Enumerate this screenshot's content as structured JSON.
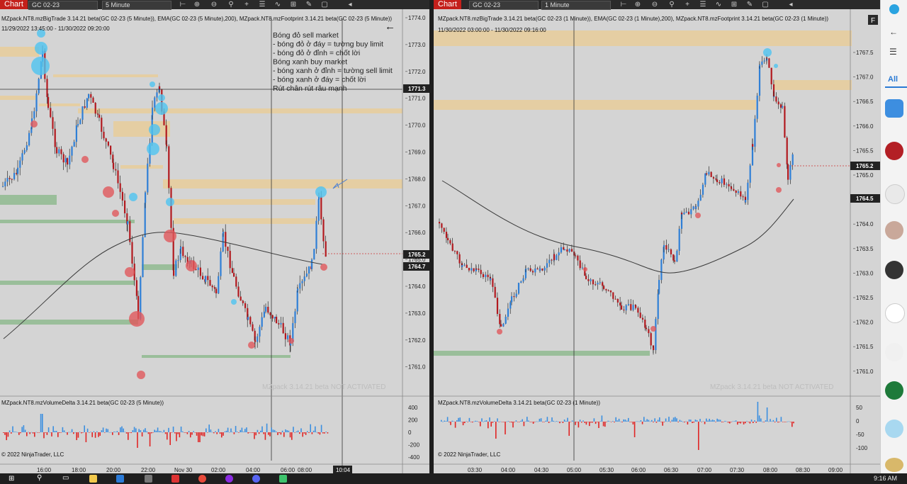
{
  "left": {
    "tab_label": "Chart",
    "instrument": "GC 02-23",
    "timeframe": "5 Minute",
    "indicator_title": "MZpack.NT8.mzBigTrade 3.14.21 beta(GC 02-23 (5 Minute)), EMA(GC 02-23 (5 Minute),200), MZpack.NT8.mzFootprint 3.14.21 beta(GC 02-23 (5 Minute))",
    "date_range": "11/29/2022 13:45:00 - 11/30/2022 09:20:00",
    "notes": [
      "Bóng đỏ sell market",
      "- bóng đỏ ở đáy = tường buy limit",
      "- bóng đỏ ở đỉnh = chốt lời",
      "Bóng xanh buy market",
      "- bóng xanh ở đỉnh = tường sell limit",
      "- bóng xanh ở đáy = chốt lời",
      "Rút chân rút râu mạnh"
    ],
    "watermark": "MZpack 3.14.21 beta NOT ACTIVATED",
    "y_ticks": [
      "1774.0",
      "1773.0",
      "1772.0",
      "1771.0",
      "1770.0",
      "1769.0",
      "1768.0",
      "1767.0",
      "1766.0",
      "1765.0",
      "1764.0",
      "1763.0",
      "1762.0",
      "1761.0"
    ],
    "cursor_price": "1771.3",
    "last_price": "1765.2",
    "ema_price": "1764.7",
    "volume_title": "MZpack.NT8.mzVolumeDelta 3.14.21 beta(GC 02-23 (5 Minute))",
    "volume_ticks": [
      "400",
      "200",
      "0",
      "-200",
      "-400"
    ],
    "copyright": "© 2022 NinjaTrader, LLC",
    "x_ticks": [
      "16:00",
      "18:00",
      "20:00",
      "22:00",
      "Nov 30",
      "02:00",
      "04:00",
      "06:00",
      "08:00"
    ],
    "cursor_time": "10:04"
  },
  "right": {
    "tab_label": "Chart",
    "instrument": "GC 02-23",
    "timeframe": "1 Minute",
    "indicator_title": "MZpack.NT8.mzBigTrade 3.14.21 beta(GC 02-23 (1 Minute)), EMA(GC 02-23 (1 Minute),200), MZpack.NT8.mzFootprint 3.14.21 beta(GC 02-23 (1 Minute))",
    "date_range": "11/30/2022 03:00:00 - 11/30/2022 09:16:00",
    "watermark": "MZpack 3.14.21 beta NOT ACTIVATED",
    "y_ticks": [
      "1767.5",
      "1767.0",
      "1766.5",
      "1766.0",
      "1765.5",
      "1765.0",
      "1764.5",
      "1764.0",
      "1763.5",
      "1763.0",
      "1762.5",
      "1762.0",
      "1761.5",
      "1761.0"
    ],
    "last_price": "1765.2",
    "ema_price": "1764.5",
    "volume_title": "MZpack.NT8.mzVolumeDelta 3.14.21 beta(GC 02-23 (1 Minute))",
    "volume_ticks": [
      "50",
      "0",
      "-50",
      "-100"
    ],
    "copyright": "© 2022 NinjaTrader, LLC",
    "x_ticks": [
      "03:30",
      "04:00",
      "04:30",
      "05:00",
      "05:30",
      "06:00",
      "06:30",
      "07:00",
      "07:30",
      "08:00",
      "08:30",
      "09:00"
    ],
    "f_button": "F"
  },
  "sidebar": {
    "all_label": "All"
  },
  "taskbar": {
    "clock": "9:16 AM"
  },
  "colors": {
    "up_candle": "#2f7fd6",
    "down_candle": "#b2191f",
    "buy_bubble": "#4ec3f0",
    "sell_bubble": "#e0575b",
    "level_sand": "#e8cd9a",
    "level_green": "#8fba8f",
    "chart_bg": "#d4d4d4"
  }
}
